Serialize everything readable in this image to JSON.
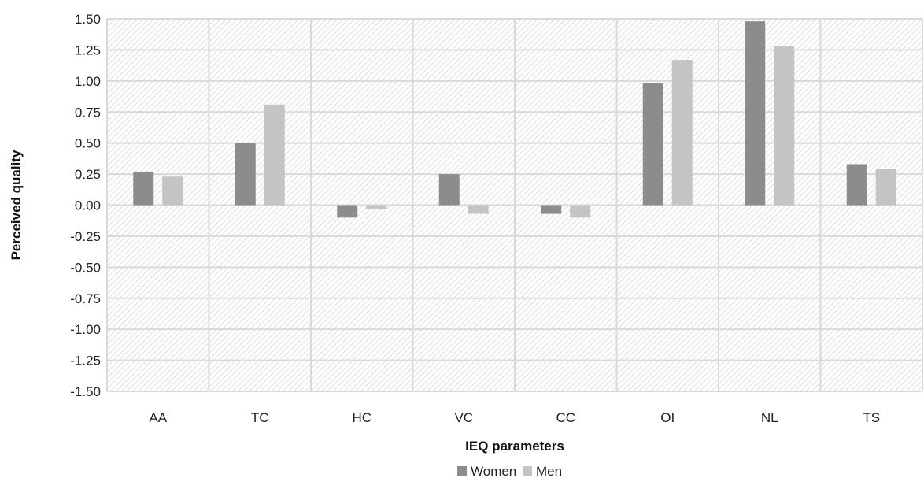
{
  "chart_data": {
    "type": "bar",
    "title": "",
    "xlabel": "IEQ parameters",
    "ylabel": "Perceived quality",
    "categories": [
      "AA",
      "TC",
      "HC",
      "VC",
      "CC",
      "OI",
      "NL",
      "TS"
    ],
    "series": [
      {
        "name": "Women",
        "color": "#8c8c8c",
        "values": [
          0.27,
          0.5,
          -0.1,
          0.25,
          -0.07,
          0.98,
          1.48,
          0.33
        ]
      },
      {
        "name": "Men",
        "color": "#c4c4c4",
        "values": [
          0.23,
          0.81,
          -0.03,
          -0.07,
          -0.1,
          1.17,
          1.28,
          0.29
        ]
      }
    ],
    "ylim": [
      -1.5,
      1.5
    ],
    "yticks": [
      "1.50",
      "1.25",
      "1.00",
      "0.75",
      "0.50",
      "0.25",
      "0.00",
      "-0.25",
      "-0.50",
      "-0.75",
      "-1.00",
      "-1.25",
      "-1.50"
    ],
    "grid": true,
    "plot_background": "hatched",
    "legend_position": "bottom"
  }
}
